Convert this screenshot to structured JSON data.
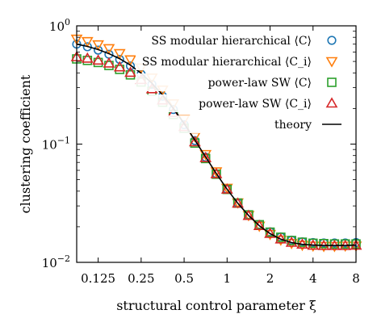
{
  "chart_data": {
    "type": "scatter",
    "xlabel": "structural control parameter ξ",
    "ylabel": "clustering coefficient",
    "xscale": "log2",
    "yscale": "log10",
    "xlim": [
      0.0884,
      8
    ],
    "ylim": [
      0.01,
      1
    ],
    "x_ticks": [
      {
        "value": 0.125,
        "label": "0.125"
      },
      {
        "value": 0.25,
        "label": "0.25"
      },
      {
        "value": 0.5,
        "label": "0.5"
      },
      {
        "value": 1,
        "label": "1"
      },
      {
        "value": 2,
        "label": "2"
      },
      {
        "value": 4,
        "label": "4"
      },
      {
        "value": 8,
        "label": "8"
      }
    ],
    "y_ticks": [
      {
        "value": 0.01,
        "base": "10",
        "exp": "−2"
      },
      {
        "value": 0.1,
        "base": "10",
        "exp": "−1"
      },
      {
        "value": 1,
        "base": "10",
        "exp": "0"
      }
    ],
    "legend_position": "top-right",
    "series": [
      {
        "name": "SS modular hierarchical ⟨C⟩",
        "marker": "circle",
        "color": "#1f77b4",
        "x": [
          0.0884,
          0.1051,
          0.125,
          0.1487,
          0.1768,
          0.2102,
          0.25,
          0.2973,
          0.3536,
          0.4204,
          0.5,
          0.5946,
          0.7071,
          0.8409,
          1,
          1.1892,
          1.4142,
          1.6818,
          2,
          2.3784,
          2.8284,
          3.3636,
          4,
          4.7568,
          5.6569,
          6.7272,
          8
        ],
        "y": [
          0.7,
          0.665,
          0.623,
          0.575,
          0.52,
          0.458,
          0.39,
          0.32,
          0.254,
          0.196,
          0.146,
          0.107,
          0.0775,
          0.0562,
          0.0415,
          0.0318,
          0.0253,
          0.0209,
          0.0181,
          0.0164,
          0.0154,
          0.0149,
          0.0147,
          0.0146,
          0.0146,
          0.0146,
          0.0147
        ]
      },
      {
        "name": "SS modular hierarchical ⟨C_i⟩",
        "marker": "triangle-down",
        "color": "#ff7f0e",
        "x": [
          0.0884,
          0.1051,
          0.125,
          0.1487,
          0.1768,
          0.2102,
          0.25,
          0.2973,
          0.3536,
          0.4204,
          0.5,
          0.5946,
          0.7071,
          0.8409,
          1,
          1.1892,
          1.4142,
          1.6818,
          2,
          2.3784,
          2.8284,
          3.3636,
          4,
          4.7568,
          5.6569,
          6.7272,
          8
        ],
        "y": [
          0.775,
          0.74,
          0.695,
          0.645,
          0.585,
          0.518,
          0.442,
          0.364,
          0.288,
          0.22,
          0.162,
          0.116,
          0.082,
          0.0585,
          0.0425,
          0.032,
          0.025,
          0.0203,
          0.0173,
          0.0155,
          0.0145,
          0.014,
          0.0138,
          0.0137,
          0.0137,
          0.0138,
          0.0138
        ]
      },
      {
        "name": "power-law SW ⟨C⟩",
        "marker": "square",
        "color": "#2ca02c",
        "x": [
          0.0884,
          0.1051,
          0.125,
          0.1487,
          0.1768,
          0.2102,
          0.25,
          0.2973,
          0.3536,
          0.4204,
          0.5,
          0.5946,
          0.7071,
          0.8409,
          1,
          1.1892,
          1.4142,
          1.6818,
          2,
          2.3784,
          2.8284,
          3.3636,
          4,
          4.7568,
          5.6569,
          6.7272,
          8
        ],
        "y": [
          0.525,
          0.51,
          0.49,
          0.462,
          0.428,
          0.385,
          0.335,
          0.28,
          0.226,
          0.178,
          0.136,
          0.102,
          0.0755,
          0.0556,
          0.0414,
          0.0317,
          0.0252,
          0.0208,
          0.018,
          0.0163,
          0.0153,
          0.0148,
          0.0145,
          0.0144,
          0.0143,
          0.0143,
          0.0143
        ]
      },
      {
        "name": "power-law SW ⟨C_i⟩",
        "marker": "triangle-up",
        "color": "#d62728",
        "x": [
          0.0884,
          0.1051,
          0.125,
          0.1487,
          0.1768,
          0.2102,
          0.25,
          0.2973,
          0.3536,
          0.4204,
          0.5,
          0.5946,
          0.7071,
          0.8409,
          1,
          1.1892,
          1.4142,
          1.6818,
          2,
          2.3784,
          2.8284,
          3.3636,
          4,
          4.7568,
          5.6569,
          6.7272,
          8
        ],
        "y": [
          0.545,
          0.53,
          0.51,
          0.482,
          0.447,
          0.402,
          0.35,
          0.292,
          0.235,
          0.184,
          0.14,
          0.104,
          0.0765,
          0.056,
          0.0414,
          0.0315,
          0.0248,
          0.0204,
          0.0175,
          0.0157,
          0.0147,
          0.0142,
          0.0139,
          0.0138,
          0.0138,
          0.0138,
          0.0139
        ]
      },
      {
        "name": "theory",
        "marker": "line",
        "color": "#000000",
        "x": [
          0.0884,
          0.1051,
          0.125,
          0.1487,
          0.1768,
          0.2102,
          0.25,
          0.2973,
          0.3536,
          0.4204,
          0.5,
          0.5946,
          0.7071,
          0.8409,
          1,
          1.1892,
          1.4142,
          1.6818,
          2,
          2.3784,
          2.8284,
          3.3636,
          4,
          4.7568,
          5.6569,
          6.7272,
          8
        ],
        "y": [
          0.7,
          0.67,
          0.63,
          0.582,
          0.527,
          0.465,
          0.397,
          0.327,
          0.26,
          0.2,
          0.149,
          0.108,
          0.078,
          0.0563,
          0.0415,
          0.0316,
          0.0249,
          0.0204,
          0.0175,
          0.0157,
          0.0147,
          0.0142,
          0.014,
          0.0139,
          0.0139,
          0.0139,
          0.014
        ]
      }
    ]
  }
}
